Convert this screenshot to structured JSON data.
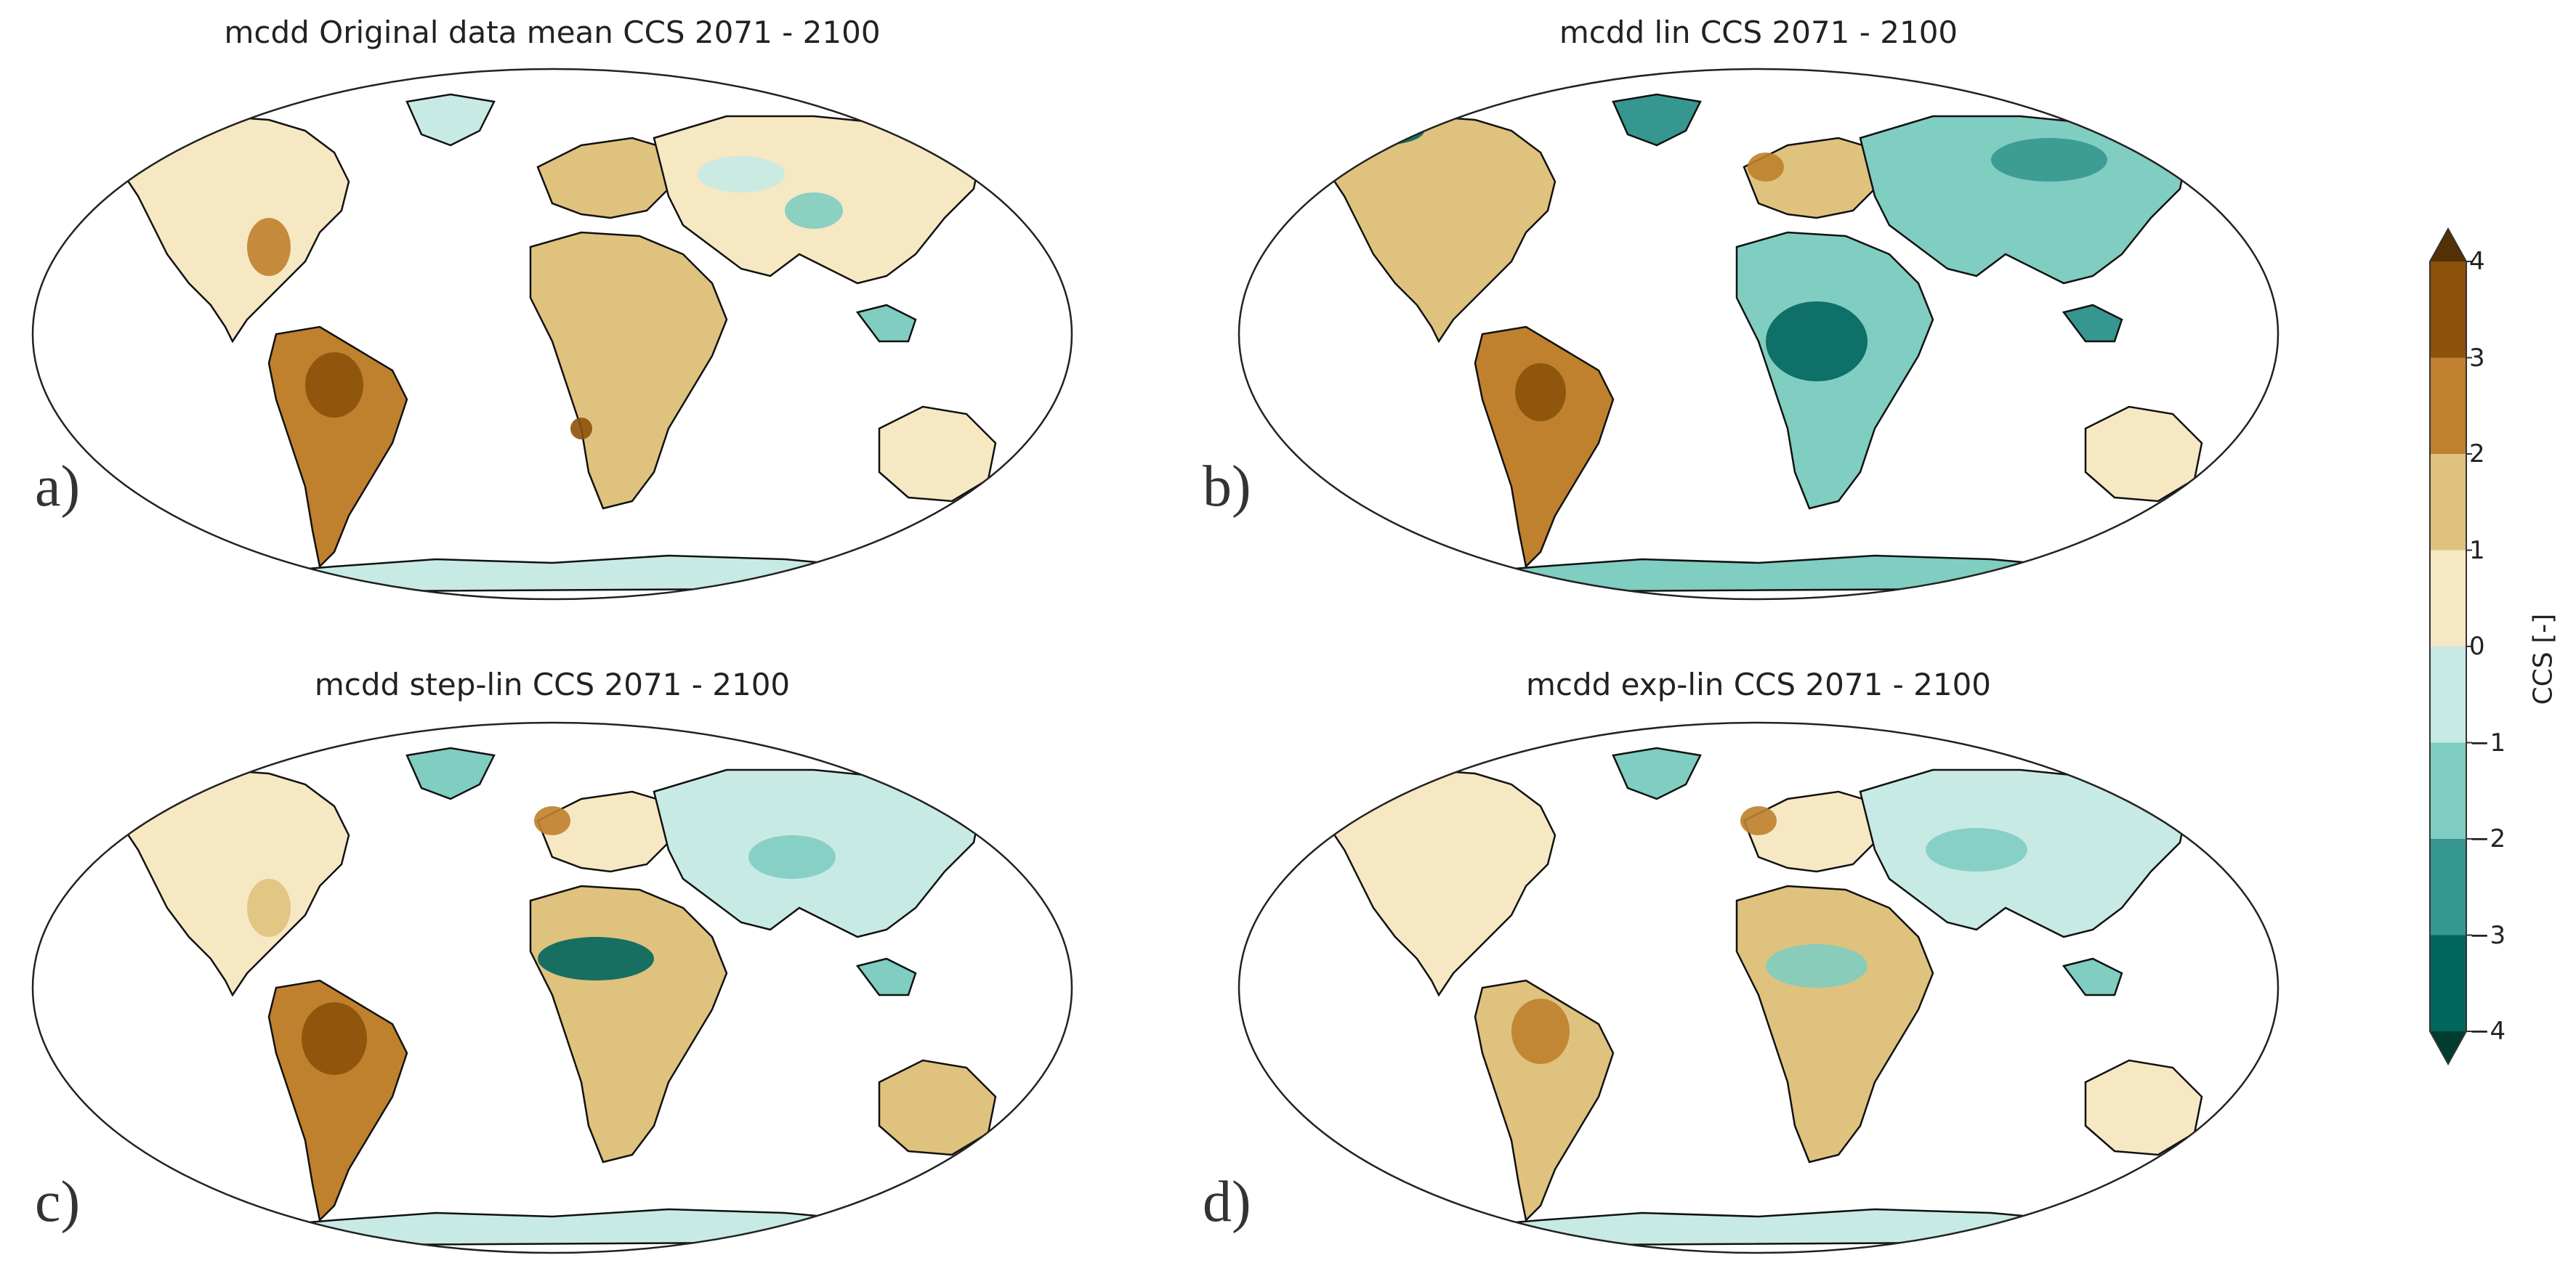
{
  "panels": [
    {
      "title": "mcdd Original data mean CCS 2071 - 2100",
      "letter": "a)"
    },
    {
      "title": "mcdd lin CCS 2071 - 2100",
      "letter": "b)"
    },
    {
      "title": "mcdd step-lin CCS 2071 - 2100",
      "letter": "c)"
    },
    {
      "title": "mcdd exp-lin CCS 2071 - 2100",
      "letter": "d)"
    }
  ],
  "colorbar": {
    "label": "CCS [-]",
    "ticks": [
      "4",
      "3",
      "2",
      "1",
      "0",
      "−1",
      "−2",
      "−3",
      "−4"
    ],
    "colors": [
      "#8c510a",
      "#bf812d",
      "#dfc27d",
      "#f6e8c3",
      "#c7eae5",
      "#80cdc1",
      "#35978f",
      "#01665e"
    ],
    "extend_top": "#543005",
    "extend_bottom": "#003c30"
  }
}
